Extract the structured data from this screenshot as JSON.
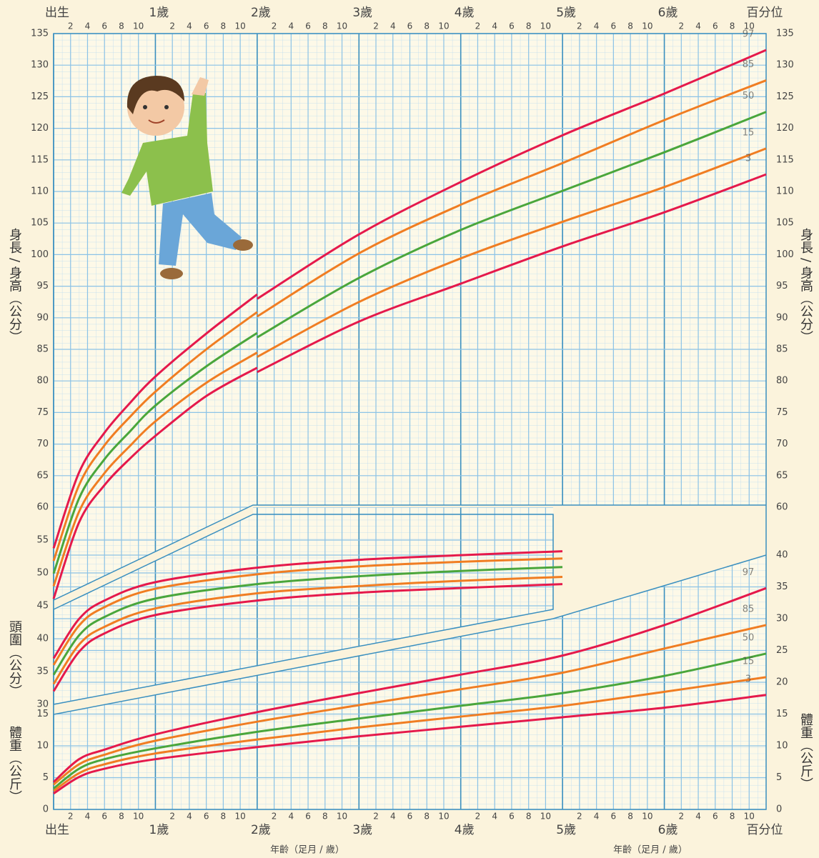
{
  "chart_data": [
    {
      "type": "line",
      "ylabel": "身長 / 身高（公分）",
      "xlabel": "年齡（足月 / 歲）",
      "legend_title": "百分位",
      "xlim": [
        0,
        84
      ],
      "xticks": [
        {
          "value": 0,
          "label": "出生"
        },
        {
          "value": 12,
          "label": "1歲"
        },
        {
          "value": 24,
          "label": "2歲"
        },
        {
          "value": 36,
          "label": "3歲"
        },
        {
          "value": 48,
          "label": "4歲"
        },
        {
          "value": 60,
          "label": "5歲"
        },
        {
          "value": 72,
          "label": "6歲"
        }
      ],
      "xticks_minor": [
        2,
        4,
        6,
        8,
        10,
        {
          "value": 14,
          "label": "2"
        },
        {
          "value": 16,
          "label": "4"
        },
        {
          "value": 18,
          "label": "6"
        },
        {
          "value": 20,
          "label": "8"
        },
        {
          "value": 22,
          "label": "10"
        },
        {
          "value": 26,
          "label": "2"
        },
        {
          "value": 28,
          "label": "4"
        },
        {
          "value": 30,
          "label": "6"
        },
        {
          "value": 32,
          "label": "8"
        },
        {
          "value": 34,
          "label": "10"
        },
        {
          "value": 38,
          "label": "2"
        },
        {
          "value": 40,
          "label": "4"
        },
        {
          "value": 42,
          "label": "6"
        },
        {
          "value": 44,
          "label": "8"
        },
        {
          "value": 46,
          "label": "10"
        },
        {
          "value": 50,
          "label": "2"
        },
        {
          "value": 52,
          "label": "4"
        },
        {
          "value": 54,
          "label": "6"
        },
        {
          "value": 56,
          "label": "8"
        },
        {
          "value": 58,
          "label": "10"
        },
        {
          "value": 62,
          "label": "2"
        },
        {
          "value": 64,
          "label": "4"
        },
        {
          "value": 66,
          "label": "6"
        },
        {
          "value": 68,
          "label": "8"
        },
        {
          "value": 70,
          "label": "10"
        },
        {
          "value": 74,
          "label": "2"
        },
        {
          "value": 76,
          "label": "4"
        },
        {
          "value": 78,
          "label": "6"
        },
        {
          "value": 80,
          "label": "8"
        },
        {
          "value": 82,
          "label": "10"
        }
      ],
      "ylim": [
        60,
        135
      ],
      "yticks": [
        60,
        65,
        70,
        75,
        80,
        85,
        90,
        95,
        100,
        105,
        110,
        115,
        120,
        125,
        130,
        135
      ],
      "x": [
        0,
        3,
        6,
        9,
        12,
        18,
        24,
        24,
        24,
        36,
        48,
        60,
        72,
        84
      ],
      "series": [
        {
          "name": "97",
          "color": "#e5194b",
          "values": [
            53.5,
            65.5,
            71.8,
            76.5,
            80.7,
            87.5,
            93.7,
            null,
            93.0,
            103.2,
            111.5,
            118.9,
            125.5,
            132.4
          ]
        },
        {
          "name": "85",
          "color": "#f07d22",
          "values": [
            51.5,
            63.5,
            69.8,
            74.3,
            78.3,
            85.0,
            90.9,
            null,
            90.2,
            100.2,
            107.9,
            114.5,
            121.3,
            127.6
          ]
        },
        {
          "name": "50",
          "color": "#4aa63b",
          "values": [
            49.5,
            61.4,
            67.6,
            72.0,
            76.1,
            82.3,
            87.6,
            null,
            86.9,
            96.3,
            103.9,
            110.1,
            116.2,
            122.6
          ]
        },
        {
          "name": "15",
          "color": "#f07d22",
          "values": [
            47.5,
            59.3,
            65.4,
            69.7,
            73.6,
            79.7,
            84.5,
            null,
            83.8,
            92.5,
            99.4,
            105.2,
            110.7,
            116.8
          ]
        },
        {
          "name": "3",
          "color": "#e5194b",
          "values": [
            45.5,
            57.6,
            63.5,
            67.7,
            71.3,
            77.6,
            82.1,
            null,
            81.4,
            89.4,
            95.4,
            101.3,
            106.7,
            112.7
          ]
        }
      ]
    },
    {
      "type": "line",
      "ylabel": "頭圍（公分）",
      "xlim": [
        0,
        60
      ],
      "ylim": [
        30,
        55
      ],
      "yticks": [
        30,
        35,
        40,
        45,
        50,
        55
      ],
      "x": [
        0,
        3,
        6,
        12,
        24,
        36,
        48,
        60
      ],
      "series": [
        {
          "color": "#e5194b",
          "values": [
            37.0,
            43.0,
            45.8,
            48.6,
            50.8,
            52.0,
            52.7,
            53.3
          ]
        },
        {
          "color": "#f07d22",
          "values": [
            36.0,
            42.0,
            44.8,
            47.6,
            49.8,
            51.0,
            51.7,
            52.2
          ]
        },
        {
          "color": "#4aa63b",
          "values": [
            34.5,
            40.5,
            43.3,
            46.1,
            48.3,
            49.5,
            50.3,
            50.9
          ]
        },
        {
          "color": "#f07d22",
          "values": [
            33.1,
            39.1,
            41.8,
            44.6,
            46.9,
            48.0,
            48.8,
            49.4
          ]
        },
        {
          "color": "#e5194b",
          "values": [
            32.0,
            38.0,
            40.8,
            43.6,
            45.8,
            47.0,
            47.7,
            48.3
          ]
        }
      ]
    },
    {
      "type": "line",
      "ylabel": "體重（公斤）",
      "xlim": [
        0,
        84
      ],
      "ylim": [
        0,
        40
      ],
      "yticks": [
        0,
        5,
        10,
        15,
        20,
        25,
        30,
        35,
        40
      ],
      "x": [
        0,
        3,
        6,
        12,
        24,
        36,
        48,
        60,
        72,
        84
      ],
      "series": [
        {
          "name": "97",
          "color": "#e5194b",
          "values": [
            4.3,
            7.9,
            9.4,
            11.8,
            15.3,
            18.3,
            21.2,
            24.2,
            29.0,
            34.8
          ]
        },
        {
          "name": "85",
          "color": "#f07d22",
          "values": [
            3.9,
            7.1,
            8.6,
            10.8,
            13.8,
            16.4,
            18.9,
            21.5,
            25.3,
            29.0
          ]
        },
        {
          "name": "50",
          "color": "#4aa63b",
          "values": [
            3.3,
            6.4,
            7.9,
            9.6,
            12.2,
            14.3,
            16.3,
            18.3,
            21.0,
            24.5
          ]
        },
        {
          "name": "15",
          "color": "#f07d22",
          "values": [
            2.9,
            5.7,
            7.1,
            8.8,
            11.0,
            12.9,
            14.6,
            16.3,
            18.5,
            20.8
          ]
        },
        {
          "name": "3",
          "color": "#e5194b",
          "values": [
            2.5,
            5.1,
            6.4,
            7.9,
            9.8,
            11.5,
            13.0,
            14.5,
            16.0,
            18.0
          ]
        }
      ]
    }
  ]
}
